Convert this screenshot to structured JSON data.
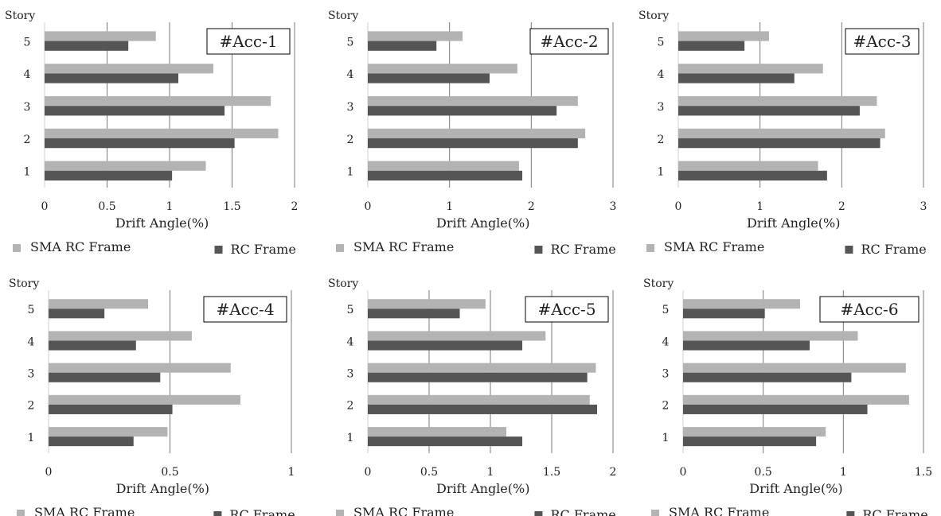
{
  "chart_data": [
    {
      "type": "bar",
      "title": "#Acc-1",
      "ylabel": "Story",
      "xlabel": "Drift Angle(%)",
      "categories": [
        "1",
        "2",
        "3",
        "4",
        "5"
      ],
      "xlim": [
        0,
        2
      ],
      "xticks": [
        "0",
        "0.5",
        "1",
        "1.5",
        "2"
      ],
      "grid": true,
      "legend_placement": "bottom",
      "series": [
        {
          "name": "SMA RC Frame",
          "color": "#b3b3b3",
          "values": [
            1.29,
            1.87,
            1.81,
            1.35,
            0.89
          ]
        },
        {
          "name": "RC Frame",
          "color": "#555555",
          "values": [
            1.02,
            1.52,
            1.44,
            1.07,
            0.67
          ]
        }
      ]
    },
    {
      "type": "bar",
      "title": "#Acc-2",
      "ylabel": "Story",
      "xlabel": "Drift Angle(%)",
      "categories": [
        "1",
        "2",
        "3",
        "4",
        "5"
      ],
      "xlim": [
        0,
        3
      ],
      "xticks": [
        "0",
        "1",
        "2",
        "3"
      ],
      "grid": true,
      "legend_placement": "bottom",
      "series": [
        {
          "name": "SMA RC Frame",
          "color": "#b3b3b3",
          "values": [
            1.85,
            2.66,
            2.57,
            1.83,
            1.16
          ]
        },
        {
          "name": "RC Frame",
          "color": "#555555",
          "values": [
            1.89,
            2.57,
            2.31,
            1.49,
            0.84
          ]
        }
      ]
    },
    {
      "type": "bar",
      "title": "#Acc-3",
      "ylabel": "Story",
      "xlabel": "Drift Angle(%)",
      "categories": [
        "1",
        "2",
        "3",
        "4",
        "5"
      ],
      "xlim": [
        0,
        3
      ],
      "xticks": [
        "0",
        "1",
        "2",
        "3"
      ],
      "grid": true,
      "legend_placement": "bottom",
      "series": [
        {
          "name": "SMA RC Frame",
          "color": "#b3b3b3",
          "values": [
            1.71,
            2.53,
            2.43,
            1.77,
            1.11
          ]
        },
        {
          "name": "RC Frame",
          "color": "#555555",
          "values": [
            1.82,
            2.47,
            2.22,
            1.42,
            0.81
          ]
        }
      ]
    },
    {
      "type": "bar",
      "title": "#Acc-4",
      "ylabel": "Story",
      "xlabel": "Drift Angle(%)",
      "categories": [
        "1",
        "2",
        "3",
        "4",
        "5"
      ],
      "xlim": [
        0,
        1
      ],
      "xticks": [
        "0",
        "0.5",
        "1"
      ],
      "grid": true,
      "legend_placement": "bottom",
      "series": [
        {
          "name": "SMA RC Frame",
          "color": "#b3b3b3",
          "values": [
            0.49,
            0.79,
            0.75,
            0.59,
            0.41
          ]
        },
        {
          "name": "RC Frame",
          "color": "#555555",
          "values": [
            0.35,
            0.51,
            0.46,
            0.36,
            0.23
          ]
        }
      ]
    },
    {
      "type": "bar",
      "title": "#Acc-5",
      "ylabel": "Story",
      "xlabel": "Drift Angle(%)",
      "categories": [
        "1",
        "2",
        "3",
        "4",
        "5"
      ],
      "xlim": [
        0,
        2
      ],
      "xticks": [
        "0",
        "0.5",
        "1",
        "1.5",
        "2"
      ],
      "grid": true,
      "legend_placement": "bottom",
      "series": [
        {
          "name": "SMA RC Frame",
          "color": "#b3b3b3",
          "values": [
            1.13,
            1.81,
            1.86,
            1.45,
            0.96
          ]
        },
        {
          "name": "RC Frame",
          "color": "#555555",
          "values": [
            1.26,
            1.87,
            1.79,
            1.26,
            0.75
          ]
        }
      ]
    },
    {
      "type": "bar",
      "title": "#Acc-6",
      "ylabel": "Story",
      "xlabel": "Drift Angle(%)",
      "categories": [
        "1",
        "2",
        "3",
        "4",
        "5"
      ],
      "xlim": [
        0,
        1.5
      ],
      "xticks": [
        "0",
        "0.5",
        "1",
        "1.5"
      ],
      "grid": true,
      "legend_placement": "bottom",
      "series": [
        {
          "name": "SMA RC Frame",
          "color": "#b3b3b3",
          "values": [
            0.89,
            1.41,
            1.39,
            1.09,
            0.73
          ]
        },
        {
          "name": "RC Frame",
          "color": "#555555",
          "values": [
            0.83,
            1.15,
            1.05,
            0.79,
            0.51
          ]
        }
      ]
    }
  ]
}
